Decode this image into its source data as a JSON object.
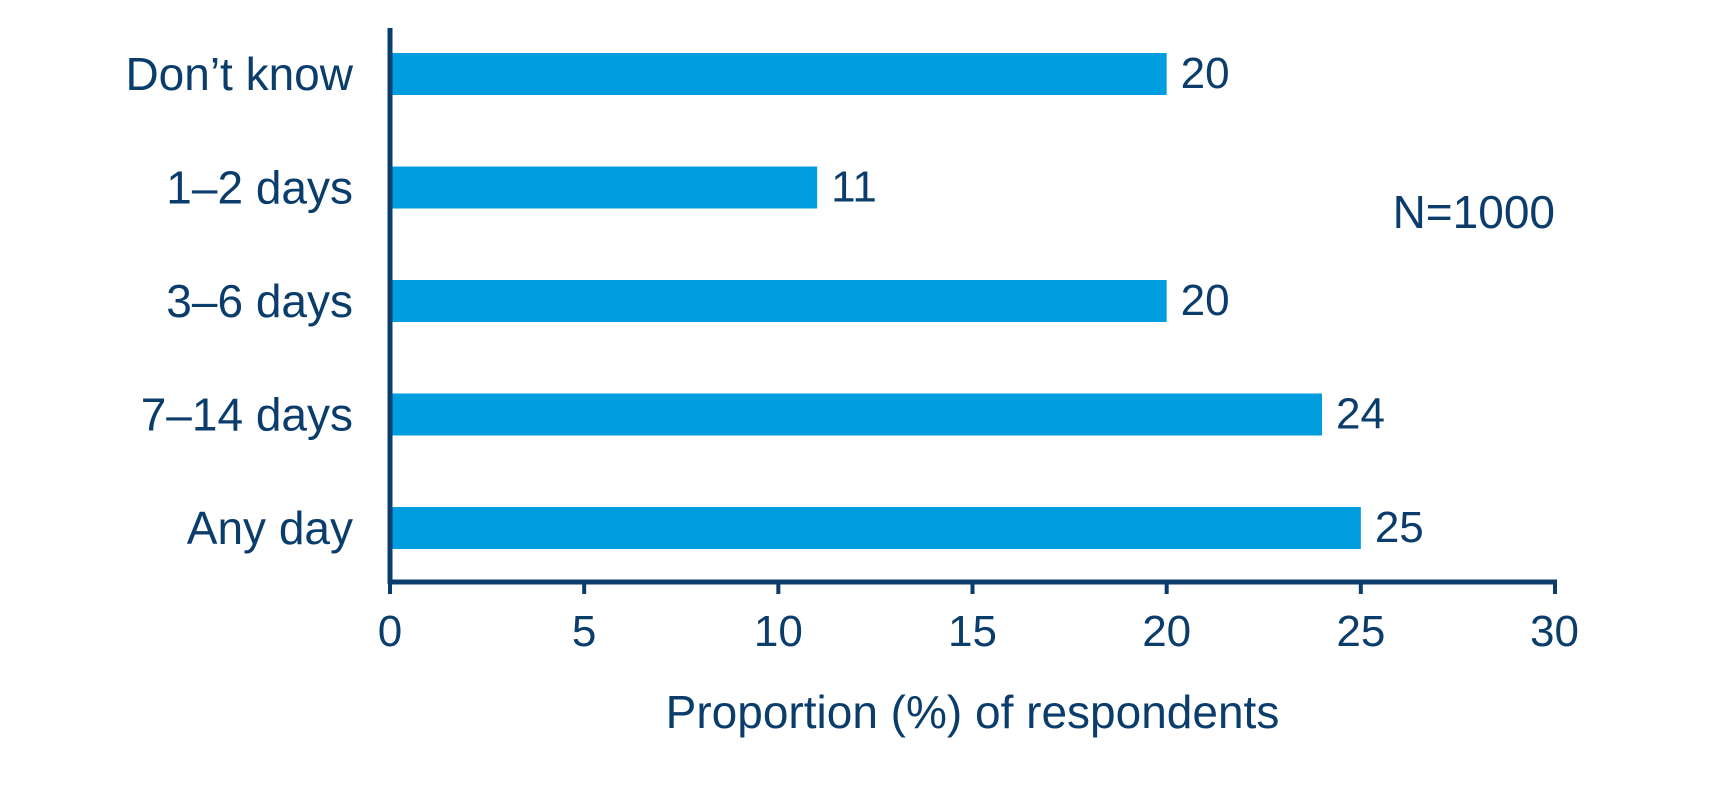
{
  "chart_data": {
    "type": "bar",
    "orientation": "horizontal",
    "categories": [
      "Don’t know",
      "1–2 days",
      "3–6 days",
      "7–14 days",
      "Any day"
    ],
    "values": [
      20,
      11,
      20,
      24,
      25
    ],
    "value_labels": [
      "20",
      "11",
      "20",
      "24",
      "25"
    ],
    "xlabel": "Proportion (%) of respondents",
    "ylabel": "",
    "title": "",
    "xlim": [
      0,
      30
    ],
    "xticks": [
      0,
      5,
      10,
      15,
      20,
      25,
      30
    ],
    "xtick_labels": [
      "0",
      "5",
      "10",
      "15",
      "20",
      "25",
      "30"
    ],
    "annotation": "N=1000",
    "grid": false,
    "legend": "none",
    "colors": {
      "bar": "#009ee0",
      "axis": "#0a3d6b",
      "text": "#0a3d6b"
    }
  }
}
